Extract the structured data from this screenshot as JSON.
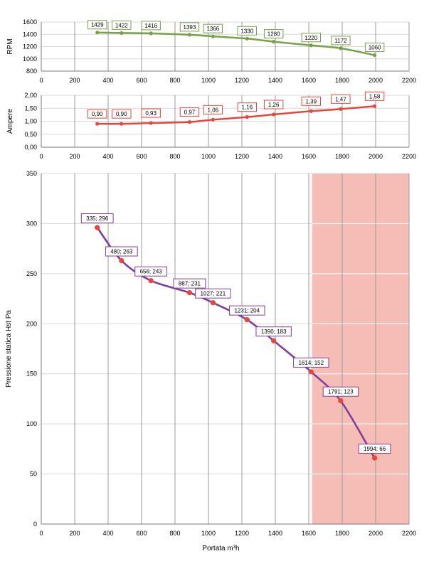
{
  "colors": {
    "rpm_line": "#77a148",
    "rpm_label_border": "#77a148",
    "amp_line": "#e8463a",
    "amp_label_border": "#e8463a",
    "pressure_line": "#7f3f9b",
    "pressure_marker": "#e8463a",
    "pressure_label_border": "#7f3f9b",
    "shaded_zone": "#f6bcb6",
    "grid_vertical": "#9b9b9b",
    "grid_horizontal": "#d9d9d9"
  },
  "chart_data": [
    {
      "type": "line",
      "ylabel": "RPM",
      "xlim": [
        0,
        2200
      ],
      "ylim": [
        800,
        1600
      ],
      "x_ticks": [
        "0",
        "200",
        "400",
        "600",
        "800",
        "1000",
        "1200",
        "1400",
        "1600",
        "1800",
        "2000",
        "2200"
      ],
      "y_ticks": [
        "800",
        "1000",
        "1200",
        "1400",
        "1600"
      ],
      "series": [
        {
          "x": [
            335,
            480,
            656,
            887,
            1027,
            1231,
            1390,
            1614,
            1791,
            1994
          ],
          "y": [
            1429,
            1422,
            1416,
            1393,
            1366,
            1330,
            1280,
            1220,
            1172,
            1060
          ],
          "labels": [
            "1429",
            "1422",
            "1416",
            "1393",
            "1366",
            "1330",
            "1280",
            "1220",
            "1172",
            "1060"
          ]
        }
      ]
    },
    {
      "type": "line",
      "ylabel": "Ampere",
      "xlim": [
        0,
        2200
      ],
      "ylim": [
        0,
        2
      ],
      "x_ticks": [
        "0",
        "200",
        "400",
        "600",
        "800",
        "1000",
        "1200",
        "1400",
        "1600",
        "1800",
        "2000",
        "2200"
      ],
      "y_ticks": [
        "0,00",
        "0,50",
        "1,00",
        "1,50",
        "2,00"
      ],
      "series": [
        {
          "x": [
            335,
            480,
            656,
            887,
            1027,
            1231,
            1390,
            1614,
            1791,
            1994
          ],
          "y": [
            0.9,
            0.9,
            0.93,
            0.97,
            1.06,
            1.16,
            1.26,
            1.39,
            1.47,
            1.58
          ],
          "labels": [
            "0,90",
            "0,90",
            "0,93",
            "0,97",
            "1,06",
            "1,16",
            "1,26",
            "1,39",
            "1,47",
            "1,58"
          ]
        }
      ]
    },
    {
      "type": "line",
      "ylabel": "Pressione statica Hst Pa",
      "xlabel": "Portata  m³h",
      "xlim": [
        0,
        2200
      ],
      "ylim": [
        0,
        350
      ],
      "x_ticks": [
        "0",
        "200",
        "400",
        "600",
        "800",
        "1000",
        "1200",
        "1400",
        "1600",
        "1800",
        "2000",
        "2200"
      ],
      "y_ticks": [
        "0",
        "50",
        "100",
        "150",
        "200",
        "250",
        "300",
        "350"
      ],
      "shaded_x_range": [
        1620,
        2200
      ],
      "series": [
        {
          "x": [
            335,
            480,
            656,
            887,
            1027,
            1231,
            1390,
            1614,
            1791,
            1994
          ],
          "y": [
            296,
            263,
            243,
            231,
            221,
            204,
            183,
            152,
            123,
            66
          ],
          "labels": [
            "335; 296",
            "480; 263",
            "656; 243",
            "887; 231",
            "1027; 221",
            "1231; 204",
            "1390; 183",
            "1614; 152",
            "1791; 123",
            "1994; 66"
          ]
        }
      ]
    }
  ]
}
